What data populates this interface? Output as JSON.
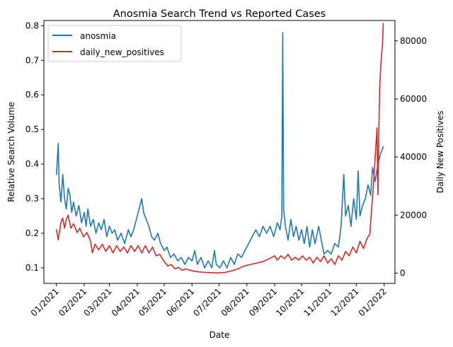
{
  "chart_data": {
    "type": "line",
    "title": "Anosmia Search Trend vs Reported Cases",
    "xlabel": "Date",
    "ylabel_left": "Relative Search Volume",
    "ylabel_right": "Daily New Positives",
    "ylim_left": [
      0.055,
      0.815
    ],
    "ylim_right": [
      -3500,
      87000
    ],
    "xlim": [
      "2020-12-18",
      "2022-01-13"
    ],
    "x_ticks": [
      "01/2021",
      "02/2021",
      "03/2021",
      "04/2021",
      "05/2021",
      "06/2021",
      "07/2021",
      "08/2021",
      "09/2021",
      "10/2021",
      "11/2021",
      "12/2021",
      "01/2022"
    ],
    "y_ticks_left": [
      "0.1",
      "0.2",
      "0.3",
      "0.4",
      "0.5",
      "0.6",
      "0.7",
      "0.8"
    ],
    "y_ticks_right": [
      "0",
      "20000",
      "40000",
      "60000",
      "80000"
    ],
    "legend_position": "top-left",
    "grid": false,
    "series": [
      {
        "name": "anosmia",
        "axis": "left",
        "color": "#1f77b4",
        "points": [
          [
            "2021-01-01",
            0.37
          ],
          [
            "2021-01-03",
            0.46
          ],
          [
            "2021-01-04",
            0.34
          ],
          [
            "2021-01-06",
            0.29
          ],
          [
            "2021-01-08",
            0.37
          ],
          [
            "2021-01-10",
            0.3
          ],
          [
            "2021-01-12",
            0.27
          ],
          [
            "2021-01-14",
            0.33
          ],
          [
            "2021-01-16",
            0.31
          ],
          [
            "2021-01-18",
            0.26
          ],
          [
            "2021-01-20",
            0.29
          ],
          [
            "2021-01-23",
            0.25
          ],
          [
            "2021-01-26",
            0.28
          ],
          [
            "2021-01-29",
            0.23
          ],
          [
            "2021-02-01",
            0.26
          ],
          [
            "2021-02-03",
            0.22
          ],
          [
            "2021-02-05",
            0.27
          ],
          [
            "2021-02-08",
            0.22
          ],
          [
            "2021-02-11",
            0.24
          ],
          [
            "2021-02-14",
            0.2
          ],
          [
            "2021-02-17",
            0.23
          ],
          [
            "2021-02-20",
            0.21
          ],
          [
            "2021-02-23",
            0.24
          ],
          [
            "2021-02-26",
            0.19
          ],
          [
            "2021-03-01",
            0.22
          ],
          [
            "2021-03-04",
            0.2
          ],
          [
            "2021-03-07",
            0.21
          ],
          [
            "2021-03-10",
            0.18
          ],
          [
            "2021-03-14",
            0.2
          ],
          [
            "2021-03-18",
            0.17
          ],
          [
            "2021-03-22",
            0.21
          ],
          [
            "2021-03-25",
            0.19
          ],
          [
            "2021-03-28",
            0.21
          ],
          [
            "2021-04-01",
            0.25
          ],
          [
            "2021-04-04",
            0.28
          ],
          [
            "2021-04-06",
            0.3
          ],
          [
            "2021-04-08",
            0.26
          ],
          [
            "2021-04-11",
            0.24
          ],
          [
            "2021-04-14",
            0.22
          ],
          [
            "2021-04-17",
            0.19
          ],
          [
            "2021-04-20",
            0.18
          ],
          [
            "2021-04-24",
            0.2
          ],
          [
            "2021-04-27",
            0.17
          ],
          [
            "2021-05-01",
            0.15
          ],
          [
            "2021-05-04",
            0.16
          ],
          [
            "2021-05-08",
            0.13
          ],
          [
            "2021-05-12",
            0.14
          ],
          [
            "2021-05-16",
            0.12
          ],
          [
            "2021-05-20",
            0.13
          ],
          [
            "2021-05-24",
            0.11
          ],
          [
            "2021-05-28",
            0.13
          ],
          [
            "2021-06-01",
            0.12
          ],
          [
            "2021-06-04",
            0.15
          ],
          [
            "2021-06-07",
            0.11
          ],
          [
            "2021-06-11",
            0.13
          ],
          [
            "2021-06-15",
            0.1
          ],
          [
            "2021-06-19",
            0.12
          ],
          [
            "2021-06-23",
            0.1
          ],
          [
            "2021-06-26",
            0.15
          ],
          [
            "2021-06-28",
            0.11
          ],
          [
            "2021-07-02",
            0.1
          ],
          [
            "2021-07-06",
            0.12
          ],
          [
            "2021-07-10",
            0.1
          ],
          [
            "2021-07-14",
            0.13
          ],
          [
            "2021-07-18",
            0.11
          ],
          [
            "2021-07-22",
            0.14
          ],
          [
            "2021-07-26",
            0.13
          ],
          [
            "2021-07-30",
            0.15
          ],
          [
            "2021-08-03",
            0.17
          ],
          [
            "2021-08-07",
            0.19
          ],
          [
            "2021-08-11",
            0.21
          ],
          [
            "2021-08-15",
            0.19
          ],
          [
            "2021-08-19",
            0.22
          ],
          [
            "2021-08-23",
            0.2
          ],
          [
            "2021-08-27",
            0.22
          ],
          [
            "2021-08-31",
            0.19
          ],
          [
            "2021-09-04",
            0.23
          ],
          [
            "2021-09-07",
            0.21
          ],
          [
            "2021-09-09",
            0.25
          ],
          [
            "2021-09-10",
            0.78
          ],
          [
            "2021-09-11",
            0.27
          ],
          [
            "2021-09-13",
            0.22
          ],
          [
            "2021-09-16",
            0.18
          ],
          [
            "2021-09-19",
            0.24
          ],
          [
            "2021-09-22",
            0.19
          ],
          [
            "2021-09-25",
            0.22
          ],
          [
            "2021-09-28",
            0.18
          ],
          [
            "2021-10-01",
            0.21
          ],
          [
            "2021-10-04",
            0.17
          ],
          [
            "2021-10-07",
            0.22
          ],
          [
            "2021-10-10",
            0.16
          ],
          [
            "2021-10-13",
            0.21
          ],
          [
            "2021-10-16",
            0.17
          ],
          [
            "2021-10-20",
            0.22
          ],
          [
            "2021-10-23",
            0.18
          ],
          [
            "2021-10-26",
            0.14
          ],
          [
            "2021-10-30",
            0.15
          ],
          [
            "2021-11-03",
            0.14
          ],
          [
            "2021-11-07",
            0.17
          ],
          [
            "2021-11-11",
            0.16
          ],
          [
            "2021-11-14",
            0.22
          ],
          [
            "2021-11-17",
            0.37
          ],
          [
            "2021-11-19",
            0.25
          ],
          [
            "2021-11-22",
            0.28
          ],
          [
            "2021-11-25",
            0.22
          ],
          [
            "2021-11-28",
            0.3
          ],
          [
            "2021-12-01",
            0.24
          ],
          [
            "2021-12-03",
            0.38
          ],
          [
            "2021-12-05",
            0.25
          ],
          [
            "2021-12-08",
            0.28
          ],
          [
            "2021-12-11",
            0.3
          ],
          [
            "2021-12-14",
            0.34
          ],
          [
            "2021-12-17",
            0.31
          ],
          [
            "2021-12-19",
            0.39
          ],
          [
            "2021-12-22",
            0.35
          ],
          [
            "2021-12-25",
            0.4
          ],
          [
            "2021-12-28",
            0.43
          ],
          [
            "2021-12-31",
            0.45
          ]
        ]
      },
      {
        "name": "daily_new_positives",
        "axis": "right",
        "color": "#d62728",
        "points": [
          [
            "2021-01-01",
            15000
          ],
          [
            "2021-01-03",
            11500
          ],
          [
            "2021-01-06",
            17500
          ],
          [
            "2021-01-08",
            19000
          ],
          [
            "2021-01-10",
            15500
          ],
          [
            "2021-01-12",
            18500
          ],
          [
            "2021-01-14",
            20000
          ],
          [
            "2021-01-17",
            15500
          ],
          [
            "2021-01-20",
            17000
          ],
          [
            "2021-01-24",
            14000
          ],
          [
            "2021-01-27",
            15500
          ],
          [
            "2021-01-31",
            12500
          ],
          [
            "2021-02-04",
            14000
          ],
          [
            "2021-02-08",
            11000
          ],
          [
            "2021-02-10",
            7000
          ],
          [
            "2021-02-13",
            10000
          ],
          [
            "2021-02-17",
            8000
          ],
          [
            "2021-02-21",
            10000
          ],
          [
            "2021-02-25",
            7500
          ],
          [
            "2021-03-01",
            9500
          ],
          [
            "2021-03-05",
            7000
          ],
          [
            "2021-03-09",
            9500
          ],
          [
            "2021-03-13",
            7500
          ],
          [
            "2021-03-17",
            9000
          ],
          [
            "2021-03-21",
            7000
          ],
          [
            "2021-03-25",
            9500
          ],
          [
            "2021-03-29",
            7500
          ],
          [
            "2021-04-02",
            9500
          ],
          [
            "2021-04-06",
            7000
          ],
          [
            "2021-04-10",
            9500
          ],
          [
            "2021-04-14",
            7000
          ],
          [
            "2021-04-18",
            9000
          ],
          [
            "2021-04-22",
            6000
          ],
          [
            "2021-04-26",
            6500
          ],
          [
            "2021-05-01",
            4000
          ],
          [
            "2021-05-05",
            2500
          ],
          [
            "2021-05-09",
            3000
          ],
          [
            "2021-05-13",
            1500
          ],
          [
            "2021-05-17",
            2000
          ],
          [
            "2021-05-21",
            1000
          ],
          [
            "2021-05-25",
            1500
          ],
          [
            "2021-06-01",
            800
          ],
          [
            "2021-06-08",
            500
          ],
          [
            "2021-06-15",
            300
          ],
          [
            "2021-06-22",
            200
          ],
          [
            "2021-07-01",
            100
          ],
          [
            "2021-07-08",
            300
          ],
          [
            "2021-07-15",
            800
          ],
          [
            "2021-07-22",
            1500
          ],
          [
            "2021-07-29",
            2500
          ],
          [
            "2021-08-05",
            3000
          ],
          [
            "2021-08-12",
            3500
          ],
          [
            "2021-08-19",
            4000
          ],
          [
            "2021-08-26",
            5000
          ],
          [
            "2021-09-01",
            6000
          ],
          [
            "2021-09-04",
            4500
          ],
          [
            "2021-09-08",
            6000
          ],
          [
            "2021-09-12",
            5000
          ],
          [
            "2021-09-16",
            6500
          ],
          [
            "2021-09-20",
            4500
          ],
          [
            "2021-09-24",
            5500
          ],
          [
            "2021-09-28",
            4500
          ],
          [
            "2021-10-02",
            6000
          ],
          [
            "2021-10-06",
            4500
          ],
          [
            "2021-10-10",
            5500
          ],
          [
            "2021-10-14",
            3500
          ],
          [
            "2021-10-18",
            5500
          ],
          [
            "2021-10-22",
            4000
          ],
          [
            "2021-10-26",
            6000
          ],
          [
            "2021-10-30",
            3500
          ],
          [
            "2021-11-03",
            5000
          ],
          [
            "2021-11-07",
            3000
          ],
          [
            "2021-11-11",
            6000
          ],
          [
            "2021-11-15",
            4500
          ],
          [
            "2021-11-19",
            7500
          ],
          [
            "2021-11-23",
            6000
          ],
          [
            "2021-11-27",
            9000
          ],
          [
            "2021-12-01",
            7000
          ],
          [
            "2021-12-05",
            11000
          ],
          [
            "2021-12-09",
            8500
          ],
          [
            "2021-12-13",
            12000
          ],
          [
            "2021-12-16",
            13500
          ],
          [
            "2021-12-18",
            22000
          ],
          [
            "2021-12-20",
            30000
          ],
          [
            "2021-12-22",
            40000
          ],
          [
            "2021-12-24",
            50000
          ],
          [
            "2021-12-25",
            27000
          ],
          [
            "2021-12-26",
            48000
          ],
          [
            "2021-12-27",
            64000
          ],
          [
            "2021-12-28",
            70000
          ],
          [
            "2021-12-29",
            75000
          ],
          [
            "2021-12-30",
            78000
          ],
          [
            "2021-12-31",
            86000
          ]
        ]
      }
    ]
  }
}
